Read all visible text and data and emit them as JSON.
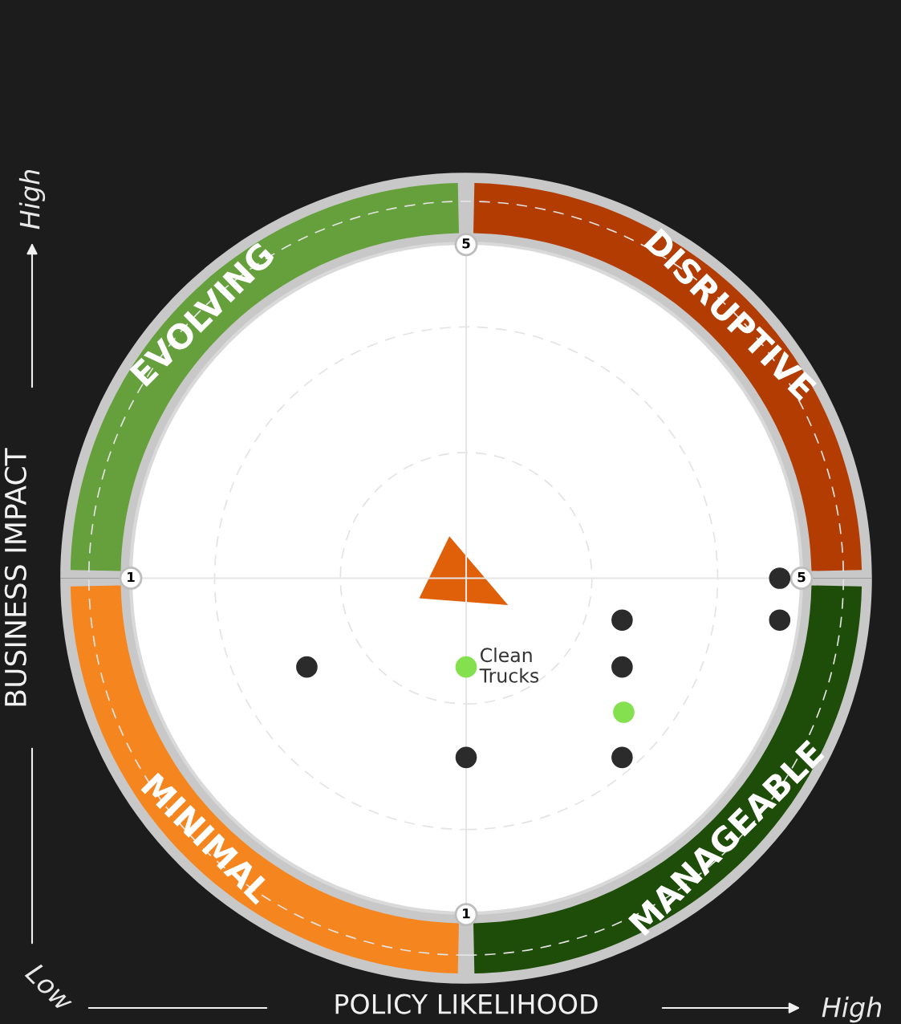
{
  "chart_data": {
    "type": "scatter",
    "xlabel": "POLICY LIKELIHOOD",
    "ylabel": "BUSINESS IMPACT",
    "xlim": [
      1,
      5
    ],
    "ylim": [
      1,
      5
    ],
    "xticks": [
      1,
      5
    ],
    "yticks": [
      1,
      5
    ],
    "grid": false,
    "legend": false,
    "marker": "circle",
    "series": [
      {
        "color": "#2b2b2b",
        "x": [
          4.87,
          4.87,
          3.93,
          3.93,
          3.93,
          3.0,
          2.05
        ],
        "values": [
          3.0,
          2.75,
          2.75,
          2.47,
          1.93,
          1.93,
          2.47
        ]
      },
      {
        "color": "#84e04f",
        "x": [
          3.0,
          3.94
        ],
        "values": [
          2.47,
          2.2
        ]
      }
    ],
    "annotations": [
      {
        "text": "Clean\nTrucks",
        "x": 3.0,
        "y": 2.47
      },
      "EVOLVING",
      "DISRUPTIVE",
      "MINIMAL",
      "MANAGEABLE",
      "Low",
      "High",
      "High"
    ]
  }
}
